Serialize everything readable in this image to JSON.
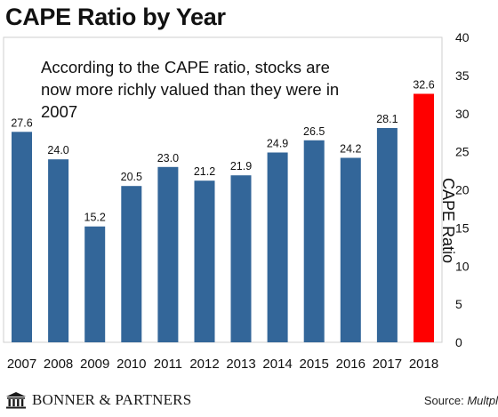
{
  "chart_data": {
    "type": "bar",
    "title": "CAPE Ratio by Year",
    "annotation": "According to the CAPE ratio, stocks are now more richly valued than they were in 2007",
    "ylabel": "CAPE Ratio",
    "xlabel": "",
    "ylim": [
      0,
      40
    ],
    "yticks": [
      0,
      5,
      10,
      15,
      20,
      25,
      30,
      35,
      40
    ],
    "categories": [
      "2007",
      "2008",
      "2009",
      "2010",
      "2011",
      "2012",
      "2013",
      "2014",
      "2015",
      "2016",
      "2017",
      "2018"
    ],
    "values": [
      27.6,
      24.0,
      15.2,
      20.5,
      23.0,
      21.2,
      21.9,
      24.9,
      26.5,
      24.2,
      28.1,
      32.6
    ],
    "value_labels": [
      "27.6",
      "24.0",
      "15.2",
      "20.5",
      "23.0",
      "21.2",
      "21.9",
      "24.9",
      "26.5",
      "24.2",
      "28.1",
      "32.6"
    ],
    "bar_colors": [
      "#336699",
      "#336699",
      "#336699",
      "#336699",
      "#336699",
      "#336699",
      "#336699",
      "#336699",
      "#336699",
      "#336699",
      "#336699",
      "#ff0000"
    ],
    "grid": false
  },
  "footer": {
    "brand": "BONNER & PARTNERS",
    "source_prefix": "Source: ",
    "source_name": "Multpl"
  },
  "colors": {
    "bar": "#336699",
    "highlight": "#ff0000",
    "frame": "#cfcfcf"
  },
  "icons": {
    "logo": "columned-building-icon"
  }
}
